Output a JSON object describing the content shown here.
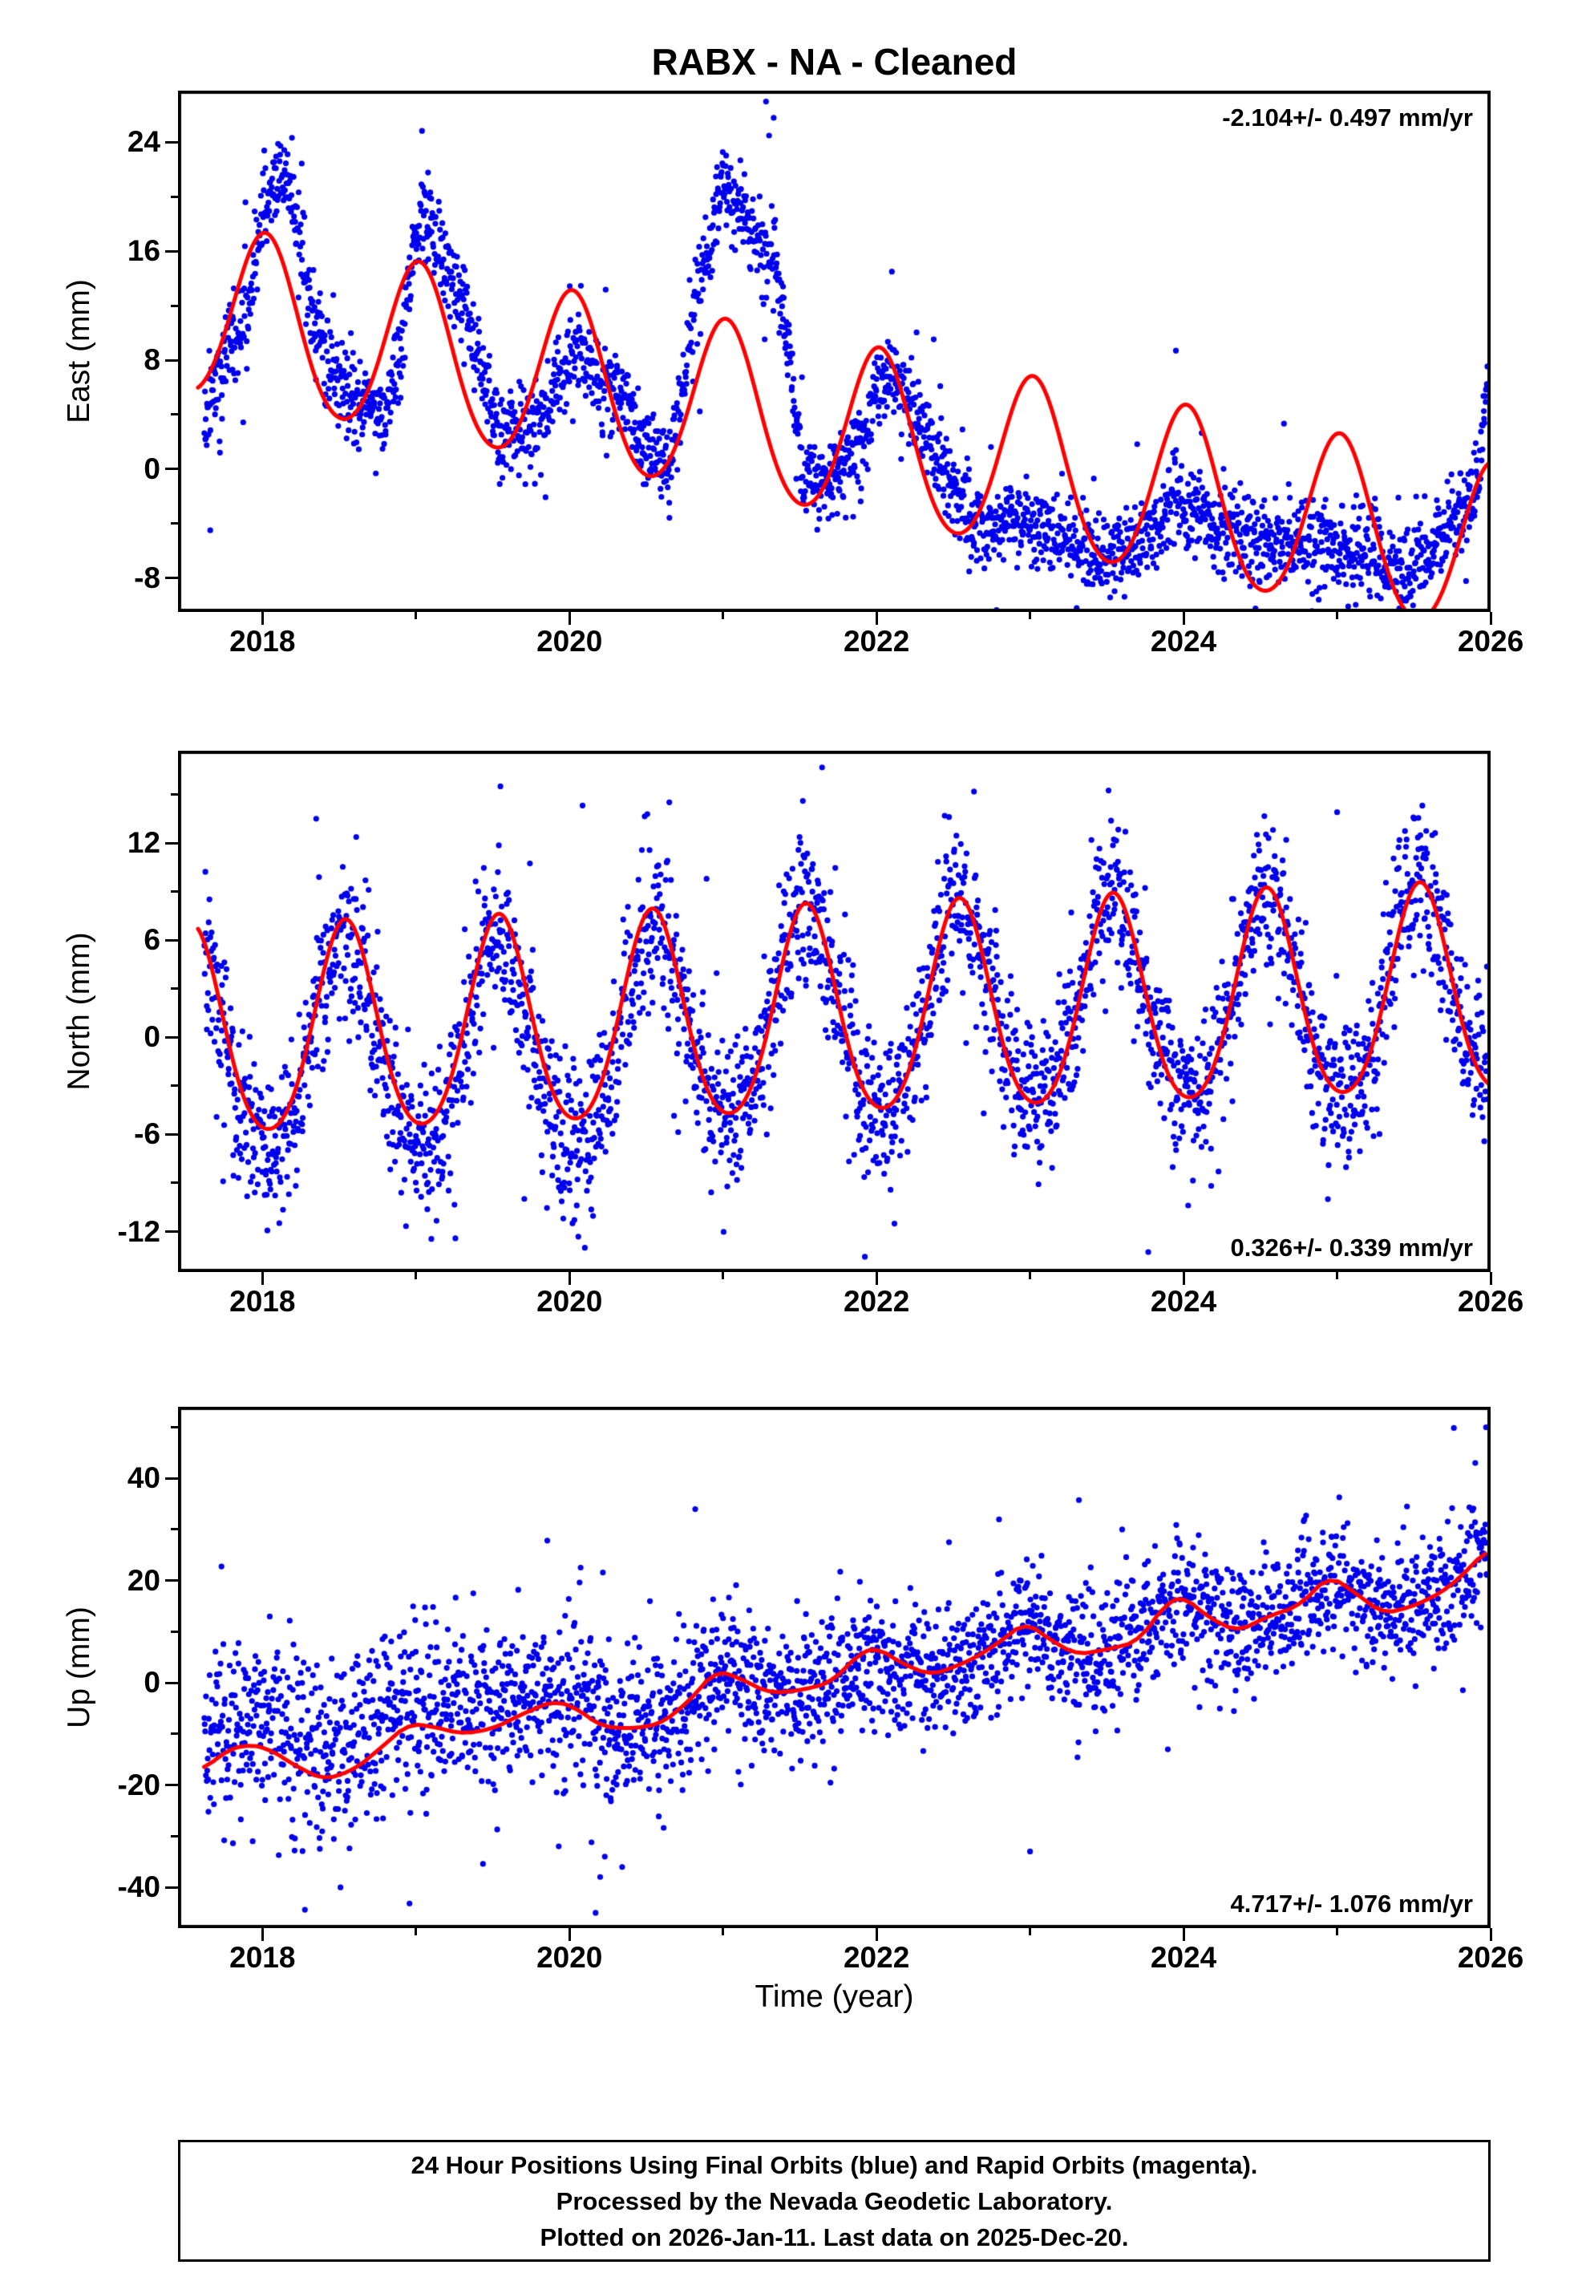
{
  "title": "RABX  - NA - Cleaned",
  "xlabel": "Time (year)",
  "footer": {
    "line1": "24 Hour Positions Using Final Orbits (blue) and Rapid Orbits (magenta).",
    "line2": "Processed by the Nevada Geodetic Laboratory.",
    "line3": "Plotted on 2026-Jan-11. Last data on 2025-Dec-20."
  },
  "colors": {
    "point": "#0000ee",
    "curve": "#ff0000",
    "frame": "#000000"
  },
  "chart_data": [
    {
      "id": "east",
      "type": "scatter",
      "seed": 11,
      "ylabel": "East (mm)",
      "ylim": [
        -10.5,
        27.8
      ],
      "yticks": [
        -8,
        0,
        8,
        16,
        24
      ],
      "yminor": [
        -4,
        4,
        12,
        20
      ],
      "x_range": [
        2017.45,
        2026.0
      ],
      "xticks": [
        2018,
        2020,
        2022,
        2024,
        2026
      ],
      "xminor": [
        2019,
        2021,
        2023,
        2025
      ],
      "annotation": "-2.104+/- 0.497 mm/yr",
      "annotation_pos": "top-right",
      "trend_mm_yr": -2.104,
      "red_curve": {
        "type": "harmonic",
        "ref": 2018.02,
        "level": 10.55,
        "slope": -2.104,
        "annual_amp": 6.3,
        "semi_amp": 0.5,
        "t_start": 2017.58,
        "t_end": 2025.99
      },
      "blue_scatter": {
        "n": 2800,
        "t_start": 2017.62,
        "t_end": 2025.98,
        "noise": 1.6,
        "outlier_frac": 0.03,
        "outlier_scale": 2.5,
        "mean_knots": [
          [
            2017.62,
            4
          ],
          [
            2017.7,
            6
          ],
          [
            2017.78,
            9
          ],
          [
            2017.9,
            11
          ],
          [
            2018.0,
            19
          ],
          [
            2018.08,
            21.5
          ],
          [
            2018.18,
            20
          ],
          [
            2018.3,
            13
          ],
          [
            2018.42,
            8
          ],
          [
            2018.52,
            5.5
          ],
          [
            2018.65,
            4.5
          ],
          [
            2018.8,
            3.5
          ],
          [
            2018.9,
            8
          ],
          [
            2019.0,
            17.5
          ],
          [
            2019.08,
            18.5
          ],
          [
            2019.2,
            14.5
          ],
          [
            2019.32,
            12.5
          ],
          [
            2019.45,
            6
          ],
          [
            2019.55,
            2.5
          ],
          [
            2019.7,
            3
          ],
          [
            2019.85,
            4
          ],
          [
            2019.97,
            8
          ],
          [
            2020.05,
            9.5
          ],
          [
            2020.2,
            6
          ],
          [
            2020.35,
            5
          ],
          [
            2020.5,
            1.5
          ],
          [
            2020.65,
            -0.5
          ],
          [
            2020.78,
            10
          ],
          [
            2020.9,
            15.5
          ],
          [
            2021.0,
            21
          ],
          [
            2021.1,
            19
          ],
          [
            2021.22,
            17
          ],
          [
            2021.32,
            16
          ],
          [
            2021.42,
            10
          ],
          [
            2021.52,
            -0.5
          ],
          [
            2021.65,
            -1
          ],
          [
            2021.8,
            0.5
          ],
          [
            2021.9,
            2
          ],
          [
            2022.0,
            6
          ],
          [
            2022.1,
            7
          ],
          [
            2022.2,
            5
          ],
          [
            2022.35,
            2
          ],
          [
            2022.5,
            -1.5
          ],
          [
            2022.62,
            -4
          ],
          [
            2022.75,
            -4.5
          ],
          [
            2022.9,
            -3.5
          ],
          [
            2023.05,
            -4
          ],
          [
            2023.2,
            -5
          ],
          [
            2023.4,
            -6
          ],
          [
            2023.6,
            -6
          ],
          [
            2023.8,
            -4.5
          ],
          [
            2023.95,
            -2
          ],
          [
            2024.1,
            -3.5
          ],
          [
            2024.3,
            -4.5
          ],
          [
            2024.55,
            -5.5
          ],
          [
            2024.8,
            -5.5
          ],
          [
            2025.0,
            -6
          ],
          [
            2025.2,
            -6
          ],
          [
            2025.4,
            -7.5
          ],
          [
            2025.55,
            -7
          ],
          [
            2025.7,
            -4.5
          ],
          [
            2025.85,
            -2.5
          ],
          [
            2025.93,
            -1
          ],
          [
            2025.98,
            6.5
          ]
        ]
      },
      "extra_points": [
        [
          2021.28,
          27
        ],
        [
          2021.3,
          24.5
        ],
        [
          2021.33,
          25.8
        ],
        [
          2023.95,
          8.7
        ],
        [
          2017.66,
          -4.5
        ],
        [
          2022.1,
          14.5
        ]
      ]
    },
    {
      "id": "north",
      "type": "scatter",
      "seed": 22,
      "ylabel": "North (mm)",
      "ylim": [
        -14.5,
        17.7
      ],
      "yticks": [
        -12,
        -6,
        0,
        6,
        12
      ],
      "yminor": [
        -9,
        -3,
        3,
        9,
        15
      ],
      "x_range": [
        2017.45,
        2026.0
      ],
      "xticks": [
        2018,
        2020,
        2022,
        2024,
        2026
      ],
      "xminor": [
        2019,
        2021,
        2023,
        2025
      ],
      "annotation": "0.326+/- 0.339 mm/yr",
      "annotation_pos": "bottom-right",
      "trend_mm_yr": 0.326,
      "red_curve": {
        "type": "harmonic",
        "ref": 2018.54,
        "level": 0.2,
        "slope": 0.326,
        "annual_amp": 6.4,
        "semi_amp": 0.7,
        "t_start": 2017.58,
        "t_end": 2025.99
      },
      "blue_scatter": {
        "n": 2800,
        "t_start": 2017.62,
        "t_end": 2025.98,
        "noise": 2.4,
        "outlier_frac": 0.05,
        "outlier_scale": 2.0,
        "offset_knots": [
          [
            2017.62,
            -0.8
          ],
          [
            2018.6,
            -1.2
          ],
          [
            2019.1,
            -1.8
          ],
          [
            2020.2,
            -1.2
          ],
          [
            2021.0,
            -0.3
          ],
          [
            2022.0,
            0
          ],
          [
            2025.98,
            0
          ]
        ]
      },
      "extra_points": [
        [
          2019.55,
          15.5
        ],
        [
          2021.52,
          14.6
        ],
        [
          2020.1,
          -13
        ],
        [
          2025.0,
          13.9
        ],
        [
          2018.35,
          13.5
        ]
      ]
    },
    {
      "id": "up",
      "type": "scatter",
      "seed": 33,
      "ylabel": "Up (mm)",
      "ylim": [
        -48,
        54
      ],
      "yticks": [
        -40,
        -20,
        0,
        20,
        40
      ],
      "yminor": [
        -30,
        -10,
        10,
        30,
        50
      ],
      "x_range": [
        2017.45,
        2026.0
      ],
      "xticks": [
        2018,
        2020,
        2022,
        2024,
        2026
      ],
      "xminor": [
        2019,
        2021,
        2023,
        2025
      ],
      "annotation": "4.717+/- 1.076 mm/yr",
      "annotation_pos": "bottom-right",
      "trend_mm_yr": 4.717,
      "red_curve": {
        "type": "knots",
        "t_start": 2017.62,
        "t_end": 2025.97,
        "knots": [
          [
            2017.62,
            -17
          ],
          [
            2017.75,
            -13.5
          ],
          [
            2017.9,
            -12
          ],
          [
            2018.05,
            -13
          ],
          [
            2018.2,
            -16
          ],
          [
            2018.4,
            -19
          ],
          [
            2018.6,
            -17
          ],
          [
            2018.8,
            -12
          ],
          [
            2018.95,
            -8
          ],
          [
            2019.1,
            -8.5
          ],
          [
            2019.3,
            -10
          ],
          [
            2019.5,
            -9
          ],
          [
            2019.7,
            -6
          ],
          [
            2019.9,
            -3.5
          ],
          [
            2020.05,
            -5
          ],
          [
            2020.2,
            -8.5
          ],
          [
            2020.4,
            -9
          ],
          [
            2020.6,
            -8
          ],
          [
            2020.8,
            -3
          ],
          [
            2020.95,
            2.5
          ],
          [
            2021.1,
            1
          ],
          [
            2021.3,
            -2
          ],
          [
            2021.5,
            -1.5
          ],
          [
            2021.7,
            0
          ],
          [
            2021.9,
            6
          ],
          [
            2022.0,
            7
          ],
          [
            2022.15,
            4
          ],
          [
            2022.35,
            1.5
          ],
          [
            2022.5,
            3
          ],
          [
            2022.65,
            5
          ],
          [
            2022.85,
            9
          ],
          [
            2022.97,
            12
          ],
          [
            2023.1,
            9
          ],
          [
            2023.3,
            5.5
          ],
          [
            2023.5,
            6.5
          ],
          [
            2023.7,
            8
          ],
          [
            2023.9,
            16
          ],
          [
            2024.0,
            17
          ],
          [
            2024.15,
            13
          ],
          [
            2024.35,
            10
          ],
          [
            2024.55,
            13
          ],
          [
            2024.75,
            15
          ],
          [
            2024.95,
            21
          ],
          [
            2025.1,
            18
          ],
          [
            2025.3,
            13.5
          ],
          [
            2025.5,
            15
          ],
          [
            2025.7,
            18
          ],
          [
            2025.85,
            22
          ],
          [
            2025.97,
            26
          ]
        ]
      },
      "blue_scatter": {
        "n": 2800,
        "t_start": 2017.62,
        "t_end": 2025.98,
        "noise_knots": [
          [
            2017.62,
            9
          ],
          [
            2019.5,
            8
          ],
          [
            2020.5,
            8
          ],
          [
            2021.5,
            6.5
          ],
          [
            2023.0,
            6.5
          ],
          [
            2024.0,
            6
          ],
          [
            2025.98,
            6
          ]
        ],
        "noise": 7,
        "outlier_frac": 0.04,
        "outlier_scale": 1.8,
        "offset_knots": [
          [
            2017.62,
            6
          ],
          [
            2018.4,
            5
          ],
          [
            2019.4,
            3
          ],
          [
            2020.4,
            1
          ],
          [
            2021.2,
            0
          ],
          [
            2025.98,
            0
          ]
        ]
      },
      "extra_points": [
        [
          2020.17,
          -45
        ],
        [
          2020.2,
          -38
        ],
        [
          2020.23,
          -34
        ],
        [
          2023.0,
          -33
        ],
        [
          2019.93,
          -32
        ],
        [
          2025.97,
          50
        ],
        [
          2025.9,
          43
        ],
        [
          2023.6,
          30
        ]
      ]
    }
  ]
}
